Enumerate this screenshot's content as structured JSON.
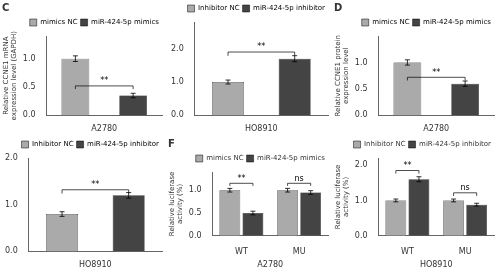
{
  "chart_data": [
    {
      "type": "bar",
      "title": "C",
      "categories": [
        "mimics NC",
        "miR-424-5p mimics"
      ],
      "values": [
        1.0,
        0.35
      ],
      "errors": [
        0.05,
        0.04
      ],
      "colors": [
        "#aaaaaa",
        "#444444"
      ],
      "y_label": "Relative CCNE1 mRNA\nexpression level (GAPDH)",
      "x_label": "A2780",
      "ylim": [
        0,
        1.4
      ],
      "yticks": [
        {
          "value": 0.0,
          "label": "0.0"
        },
        {
          "value": 0.5,
          "label": "0.5"
        },
        {
          "value": 1.0,
          "label": "1.0"
        }
      ],
      "annotations": [
        {
          "text": "**",
          "y": 0.52,
          "between": [
            "mimics NC",
            "miR-424-5p mimics"
          ]
        }
      ],
      "grid": false,
      "legend": "upper right",
      "tick_labels": "y"
    },
    {
      "type": "bar",
      "categories": [
        "Inhibitor NC",
        "miR-424-5p inhibitor"
      ],
      "values": [
        1.0,
        1.7
      ],
      "errors": [
        0.06,
        0.09
      ],
      "colors": [
        "#aaaaaa",
        "#444444"
      ],
      "x_label": "HO8910",
      "ylim": [
        0,
        2.8
      ],
      "yticks": [
        {
          "value": 0.0,
          "label": "0.0"
        },
        {
          "value": 1.0,
          "label": "1.0"
        },
        {
          "value": 2.0,
          "label": "2.0"
        }
      ],
      "annotations": [
        {
          "text": "**",
          "y": 1.9,
          "between": [
            "Inhibitor NC",
            "miR-424-5p inhibitor"
          ]
        }
      ],
      "grid": false,
      "legend": "upper right",
      "tick_labels": "y"
    },
    {
      "type": "bar",
      "title": "D",
      "categories": [
        "mimics NC",
        "miR-424-5p mimics"
      ],
      "values": [
        1.0,
        0.6
      ],
      "errors": [
        0.05,
        0.05
      ],
      "colors": [
        "#aaaaaa",
        "#444444"
      ],
      "y_label": "Relative CCNE1 protein\nexpression level",
      "x_label": "A2780",
      "ylim": [
        0,
        1.5
      ],
      "yticks": [
        {
          "value": 0.0,
          "label": "0.0"
        },
        {
          "value": 0.5,
          "label": "0.5"
        },
        {
          "value": 1.0,
          "label": "1.0"
        }
      ],
      "annotations": [
        {
          "text": "**",
          "y": 0.72,
          "between": [
            "mimics NC",
            "miR-424-5p mimics"
          ]
        }
      ],
      "grid": false,
      "legend": "upper right",
      "tick_labels": "y"
    },
    {
      "type": "bar",
      "categories": [
        "Inhibitor NC",
        "miR-424-5p inhibitor"
      ],
      "values": [
        0.8,
        1.2
      ],
      "errors": [
        0.05,
        0.06
      ],
      "colors": [
        "#aaaaaa",
        "#444444"
      ],
      "x_label": "HO8910",
      "ylim": [
        0,
        2.0
      ],
      "yticks": [
        {
          "value": 0.0,
          "label": "0.0"
        },
        {
          "value": 1.0,
          "label": "1.0"
        },
        {
          "value": 2.0,
          "label": "2.0"
        }
      ],
      "annotations": [
        {
          "text": "**",
          "y": 1.32,
          "between": [
            "Inhibitor NC",
            "miR-424-5p inhibitor"
          ]
        }
      ],
      "grid": false,
      "legend": "upper right",
      "tick_labels": "y"
    },
    {
      "type": "bar",
      "title": "F",
      "categories": [
        "WT",
        "MU"
      ],
      "series": [
        {
          "name": "mimics NC",
          "color": "#aaaaaa",
          "values": [
            1.0,
            1.0
          ],
          "errors": [
            0.04,
            0.04
          ]
        },
        {
          "name": "miR-424-5p mimics",
          "color": "#444444",
          "values": [
            0.5,
            0.95
          ],
          "errors": [
            0.04,
            0.04
          ]
        }
      ],
      "y_label": "Relative luciferase\nactivity (%)",
      "x_label": "A2780",
      "ylim": [
        0.0,
        1.4
      ],
      "yticks": [
        {
          "value": 0.0,
          "label": "0.0"
        },
        {
          "value": 0.5,
          "label": "0.5"
        },
        {
          "value": 1.0,
          "label": "1.0"
        }
      ],
      "annotations": [
        {
          "text": "**",
          "y": 1.152,
          "group": "WT"
        },
        {
          "text": "ns",
          "y": 1.152,
          "group": "MU"
        }
      ],
      "grid": false,
      "legend": "upper right"
    },
    {
      "type": "bar",
      "categories": [
        "WT",
        "MU"
      ],
      "series": [
        {
          "name": "Inhibitor NC",
          "color": "#aaaaaa",
          "values": [
            1.0,
            1.0
          ],
          "errors": [
            0.04,
            0.04
          ]
        },
        {
          "name": "miR-424-5p inhibitor",
          "color": "#444444",
          "values": [
            1.6,
            0.88
          ],
          "errors": [
            0.07,
            0.04
          ]
        }
      ],
      "y_label": "Relative luciferase\nactivity (%)",
      "x_label": "HO8910",
      "ylim": [
        0.0,
        2.2
      ],
      "yticks": [
        {
          "value": 0.0,
          "label": "0.0"
        },
        {
          "value": 1.0,
          "label": "1.0"
        },
        {
          "value": 2.0,
          "label": "2.0"
        }
      ],
      "annotations": [
        {
          "text": "**",
          "y": 1.846,
          "group": "WT"
        },
        {
          "text": "ns",
          "y": 1.216,
          "group": "MU"
        }
      ],
      "grid": false,
      "legend": "upper right"
    }
  ]
}
